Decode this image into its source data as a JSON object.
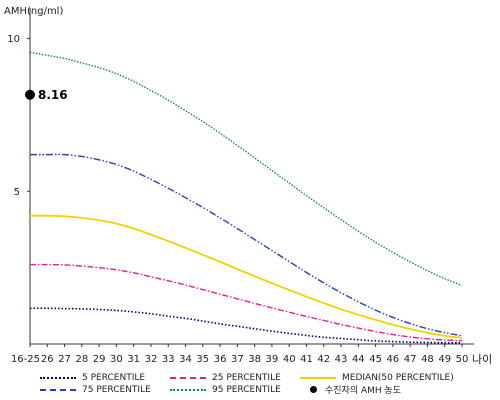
{
  "chart_data": {
    "type": "line",
    "title": "",
    "ylabel": "AMH(ng/ml)",
    "xlabel": "나이",
    "x": [
      "16-25",
      "26",
      "27",
      "28",
      "29",
      "30",
      "31",
      "32",
      "33",
      "34",
      "35",
      "36",
      "37",
      "38",
      "39",
      "40",
      "41",
      "42",
      "43",
      "44",
      "45",
      "46",
      "47",
      "48",
      "49",
      "50"
    ],
    "yticks": [
      5,
      10
    ],
    "ylim": [
      0,
      11
    ],
    "series": [
      {
        "name": "5 PERCENTILE",
        "color": "#000080",
        "dash": "1.5,2",
        "width": 1.6,
        "values": [
          1.17,
          1.17,
          1.16,
          1.15,
          1.13,
          1.1,
          1.05,
          0.99,
          0.91,
          0.84,
          0.75,
          0.66,
          0.58,
          0.5,
          0.42,
          0.35,
          0.28,
          0.22,
          0.18,
          0.14,
          0.1,
          0.08,
          0.06,
          0.05,
          0.04,
          0.04
        ]
      },
      {
        "name": "25 PERCENTILE",
        "color": "#e0218a",
        "dash": "6,2,1.5,2",
        "width": 1.4,
        "values": [
          2.6,
          2.6,
          2.59,
          2.55,
          2.5,
          2.43,
          2.33,
          2.2,
          2.07,
          1.93,
          1.78,
          1.63,
          1.48,
          1.33,
          1.18,
          1.04,
          0.9,
          0.77,
          0.64,
          0.52,
          0.41,
          0.31,
          0.23,
          0.17,
          0.13,
          0.11
        ]
      },
      {
        "name": "MEDIAN(50 PERCENTILE)",
        "color": "#f5d000",
        "dash": "",
        "width": 1.8,
        "values": [
          4.2,
          4.2,
          4.18,
          4.13,
          4.05,
          3.94,
          3.78,
          3.58,
          3.37,
          3.15,
          2.92,
          2.69,
          2.45,
          2.22,
          1.99,
          1.77,
          1.55,
          1.34,
          1.14,
          0.96,
          0.79,
          0.63,
          0.49,
          0.37,
          0.27,
          0.2
        ]
      },
      {
        "name": "75 PERCENTILE",
        "color": "#2b3fb8",
        "dash": "7,2,1.5,2,1.5,2",
        "width": 1.4,
        "values": [
          6.2,
          6.2,
          6.2,
          6.14,
          6.03,
          5.88,
          5.66,
          5.39,
          5.1,
          4.79,
          4.47,
          4.13,
          3.78,
          3.42,
          3.06,
          2.7,
          2.34,
          2.0,
          1.68,
          1.38,
          1.11,
          0.87,
          0.67,
          0.5,
          0.37,
          0.27
        ]
      },
      {
        "name": "95 PERCENTILE",
        "color": "#1a8c3c",
        "dash": "1.5,1.5",
        "width": 1.4,
        "values": [
          9.55,
          9.45,
          9.35,
          9.2,
          9.05,
          8.85,
          8.6,
          8.3,
          7.98,
          7.64,
          7.28,
          6.9,
          6.5,
          6.09,
          5.68,
          5.27,
          4.86,
          4.46,
          4.07,
          3.69,
          3.33,
          3.0,
          2.69,
          2.4,
          2.14,
          1.92
        ]
      }
    ],
    "patient_point": {
      "x": "16-25",
      "y": 8.16,
      "label": "8.16",
      "legend_label": "수진자의 AMH 농도"
    },
    "legend_placement": "bottom",
    "grid": false
  }
}
